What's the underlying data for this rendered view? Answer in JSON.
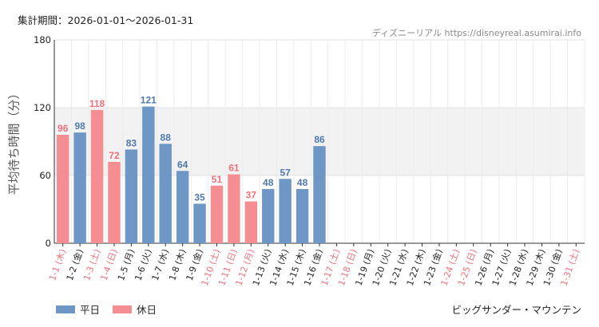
{
  "header": {
    "period_label": "集計期間：2026-01-01〜2026-01-31",
    "source": "ディズニーリアル https://disneyreal.asumirai.info"
  },
  "footer": {
    "attraction": "ビッグサンダー・マウンテン"
  },
  "colors": {
    "weekday": "#6f97c6",
    "holiday": "#f58e92",
    "weekday_text": "#4f79ad",
    "holiday_text": "#f0707a",
    "band": "#f2f2f2"
  },
  "chart_data": {
    "type": "bar",
    "ylabel": "平均待ち時間（分）",
    "ylim": [
      0,
      180
    ],
    "yticks": [
      0,
      60,
      120,
      180
    ],
    "highlight_band": [
      60,
      120
    ],
    "grid": true,
    "legend_position": "bottom-left",
    "legend": [
      {
        "name": "平日",
        "key": "weekday"
      },
      {
        "name": "休日",
        "key": "holiday"
      }
    ],
    "categories": [
      "1-1 (木)",
      "1-2 (金)",
      "1-3 (土)",
      "1-4 (日)",
      "1-5 (月)",
      "1-6 (火)",
      "1-7 (水)",
      "1-8 (木)",
      "1-9 (金)",
      "1-10 (土)",
      "1-11 (日)",
      "1-12 (月)",
      "1-13 (火)",
      "1-14 (水)",
      "1-15 (木)",
      "1-16 (金)",
      "1-17 (土)",
      "1-18 (日)",
      "1-19 (月)",
      "1-20 (火)",
      "1-21 (水)",
      "1-22 (木)",
      "1-23 (金)",
      "1-24 (土)",
      "1-25 (日)",
      "1-26 (月)",
      "1-27 (火)",
      "1-28 (水)",
      "1-29 (木)",
      "1-30 (金)",
      "1-31 (土)"
    ],
    "values": [
      96,
      98,
      118,
      72,
      83,
      121,
      88,
      64,
      35,
      51,
      61,
      37,
      48,
      57,
      48,
      86,
      null,
      null,
      null,
      null,
      null,
      null,
      null,
      null,
      null,
      null,
      null,
      null,
      null,
      null,
      null
    ],
    "day_type": [
      "holiday",
      "weekday",
      "holiday",
      "holiday",
      "weekday",
      "weekday",
      "weekday",
      "weekday",
      "weekday",
      "holiday",
      "holiday",
      "holiday",
      "weekday",
      "weekday",
      "weekday",
      "weekday",
      "holiday",
      "holiday",
      "weekday",
      "weekday",
      "weekday",
      "weekday",
      "weekday",
      "holiday",
      "holiday",
      "weekday",
      "weekday",
      "weekday",
      "weekday",
      "weekday",
      "holiday"
    ]
  }
}
